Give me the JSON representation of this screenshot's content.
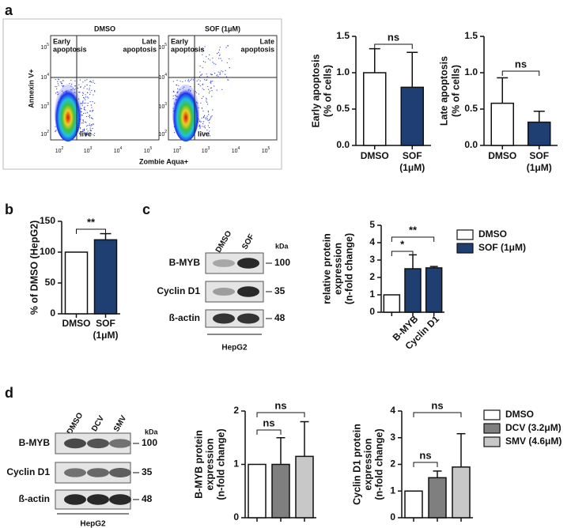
{
  "panel_labels": [
    "a",
    "b",
    "c",
    "d"
  ],
  "flow": {
    "y_axis_label": "Annexin V+",
    "x_axis_label": "Zombie Aqua+",
    "tick_base": "10",
    "tick_exponents": [
      2,
      3,
      4,
      5
    ],
    "quadrants": {
      "early": [
        "Early",
        "apoptosis"
      ],
      "late": [
        "Late",
        "apoptosis"
      ],
      "live": "live"
    },
    "plots": [
      "DMSO",
      "SOF (1μM)"
    ]
  },
  "blots": [
    {
      "lanes": [
        "DMSO",
        "SOF"
      ],
      "unit": "kDa",
      "rows": [
        {
          "label": "B-MYB",
          "kda": 100
        },
        {
          "label": "Cyclin D1",
          "kda": 35
        },
        {
          "label": "ß-actin",
          "kda": 48
        }
      ],
      "cell_line": "HepG2"
    },
    {
      "lanes": [
        "DMSO",
        "DCV",
        "SMV"
      ],
      "unit": "kDa",
      "rows": [
        {
          "label": "B-MYB",
          "kda": 100
        },
        {
          "label": "Cyclin D1",
          "kda": 35
        },
        {
          "label": "ß-actin",
          "kda": 48
        }
      ],
      "cell_line": "HepG2"
    }
  ],
  "chart_data": [
    {
      "type": "bar",
      "y_label": [
        "Early apoptosis",
        "(% of cells)"
      ],
      "categories": [
        [
          "DMSO"
        ],
        [
          "SOF",
          "(1μM)"
        ]
      ],
      "values": [
        1.0,
        0.8
      ],
      "errors": [
        0.33,
        0.48
      ],
      "colors": [
        "#ffffff",
        "#1f3f73"
      ],
      "ylim": [
        0,
        1.5
      ],
      "yticks": [
        {
          "value": 0,
          "label": "0.0"
        },
        {
          "value": 0.5,
          "label": "0.5"
        },
        {
          "value": 1,
          "label": "1.0"
        },
        {
          "value": 1.5,
          "label": "1.5"
        }
      ],
      "annotations": [
        "ns"
      ],
      "legend": false
    },
    {
      "type": "bar",
      "y_label": [
        "Late apoptosis",
        "(% of cells)"
      ],
      "categories": [
        [
          "DMSO"
        ],
        [
          "SOF",
          "(1μM)"
        ]
      ],
      "values": [
        0.58,
        0.32
      ],
      "errors": [
        0.35,
        0.15
      ],
      "colors": [
        "#ffffff",
        "#1f3f73"
      ],
      "ylim": [
        0,
        1.5
      ],
      "yticks": [
        {
          "value": 0,
          "label": "0.0"
        },
        {
          "value": 0.5,
          "label": "0.5"
        },
        {
          "value": 1,
          "label": "1.0"
        },
        {
          "value": 1.5,
          "label": "1.5"
        }
      ],
      "annotations": [
        "ns"
      ],
      "legend": false
    },
    {
      "type": "bar",
      "y_label": [
        "% of DMSO (HepG2)"
      ],
      "categories": [
        [
          "DMSO"
        ],
        [
          "SOF",
          "(1μM)"
        ]
      ],
      "values": [
        100,
        120
      ],
      "errors": [
        null,
        10
      ],
      "colors": [
        "#ffffff",
        "#1f3f73"
      ],
      "ylim": [
        0,
        150
      ],
      "yticks": [
        0,
        50,
        100,
        150
      ],
      "annotations": [
        "**"
      ],
      "legend": false
    },
    {
      "type": "bar",
      "y_label": [
        "relative protein",
        "expression",
        "(n-fold change)"
      ],
      "categories": [
        null,
        [
          "B-MYB"
        ],
        [
          "Cyclin D1"
        ]
      ],
      "series": [
        {
          "name": "DMSO",
          "color": "#ffffff",
          "values": [
            1,
            null,
            null
          ],
          "errors": [
            null,
            null,
            null
          ]
        },
        {
          "name": "SOF (1μM)",
          "color": "#1f3f73",
          "values": [
            null,
            2.5,
            2.55
          ],
          "errors": [
            null,
            0.8,
            0.08
          ]
        }
      ],
      "ylim": [
        0,
        5
      ],
      "yticks": [
        0,
        1,
        2,
        3,
        4,
        5
      ],
      "annotations": [
        "*",
        "**"
      ],
      "legend": true
    },
    {
      "type": "bar",
      "y_label": [
        "B-MYB protein",
        "expression",
        "(n-fold change)"
      ],
      "categories": [
        null,
        null,
        null
      ],
      "series": [
        {
          "name": "DMSO",
          "color": "#ffffff",
          "values": [
            1,
            null,
            null
          ],
          "errors": [
            null,
            null,
            null
          ]
        },
        {
          "name": "DCV (3.2μM)",
          "color": "#7f7f7f",
          "values": [
            null,
            1.0,
            null
          ],
          "errors": [
            null,
            0.5,
            null
          ]
        },
        {
          "name": "SMV (4.6μM)",
          "color": "#c8c8c8",
          "values": [
            null,
            null,
            1.15
          ],
          "errors": [
            null,
            null,
            0.65
          ]
        }
      ],
      "ylim": [
        0,
        2
      ],
      "yticks": [
        0,
        1,
        2
      ],
      "annotations": [
        "ns",
        "ns"
      ],
      "legend": false
    },
    {
      "type": "bar",
      "y_label": [
        "Cyclin D1 protein",
        "expression",
        "(n-fold change)"
      ],
      "categories": [
        null,
        null,
        null
      ],
      "series": [
        {
          "name": "DMSO",
          "color": "#ffffff",
          "values": [
            1,
            null,
            null
          ],
          "errors": [
            null,
            null,
            null
          ]
        },
        {
          "name": "DCV (3.2μM)",
          "color": "#7f7f7f",
          "values": [
            null,
            1.5,
            null
          ],
          "errors": [
            null,
            0.25,
            null
          ]
        },
        {
          "name": "SMV (4.6μM)",
          "color": "#c8c8c8",
          "values": [
            null,
            null,
            1.9
          ],
          "errors": [
            null,
            null,
            1.25
          ]
        }
      ],
      "ylim": [
        0,
        4
      ],
      "yticks": [
        0,
        1,
        2,
        3,
        4
      ],
      "annotations": [
        "ns",
        "ns"
      ],
      "legend": true
    }
  ]
}
